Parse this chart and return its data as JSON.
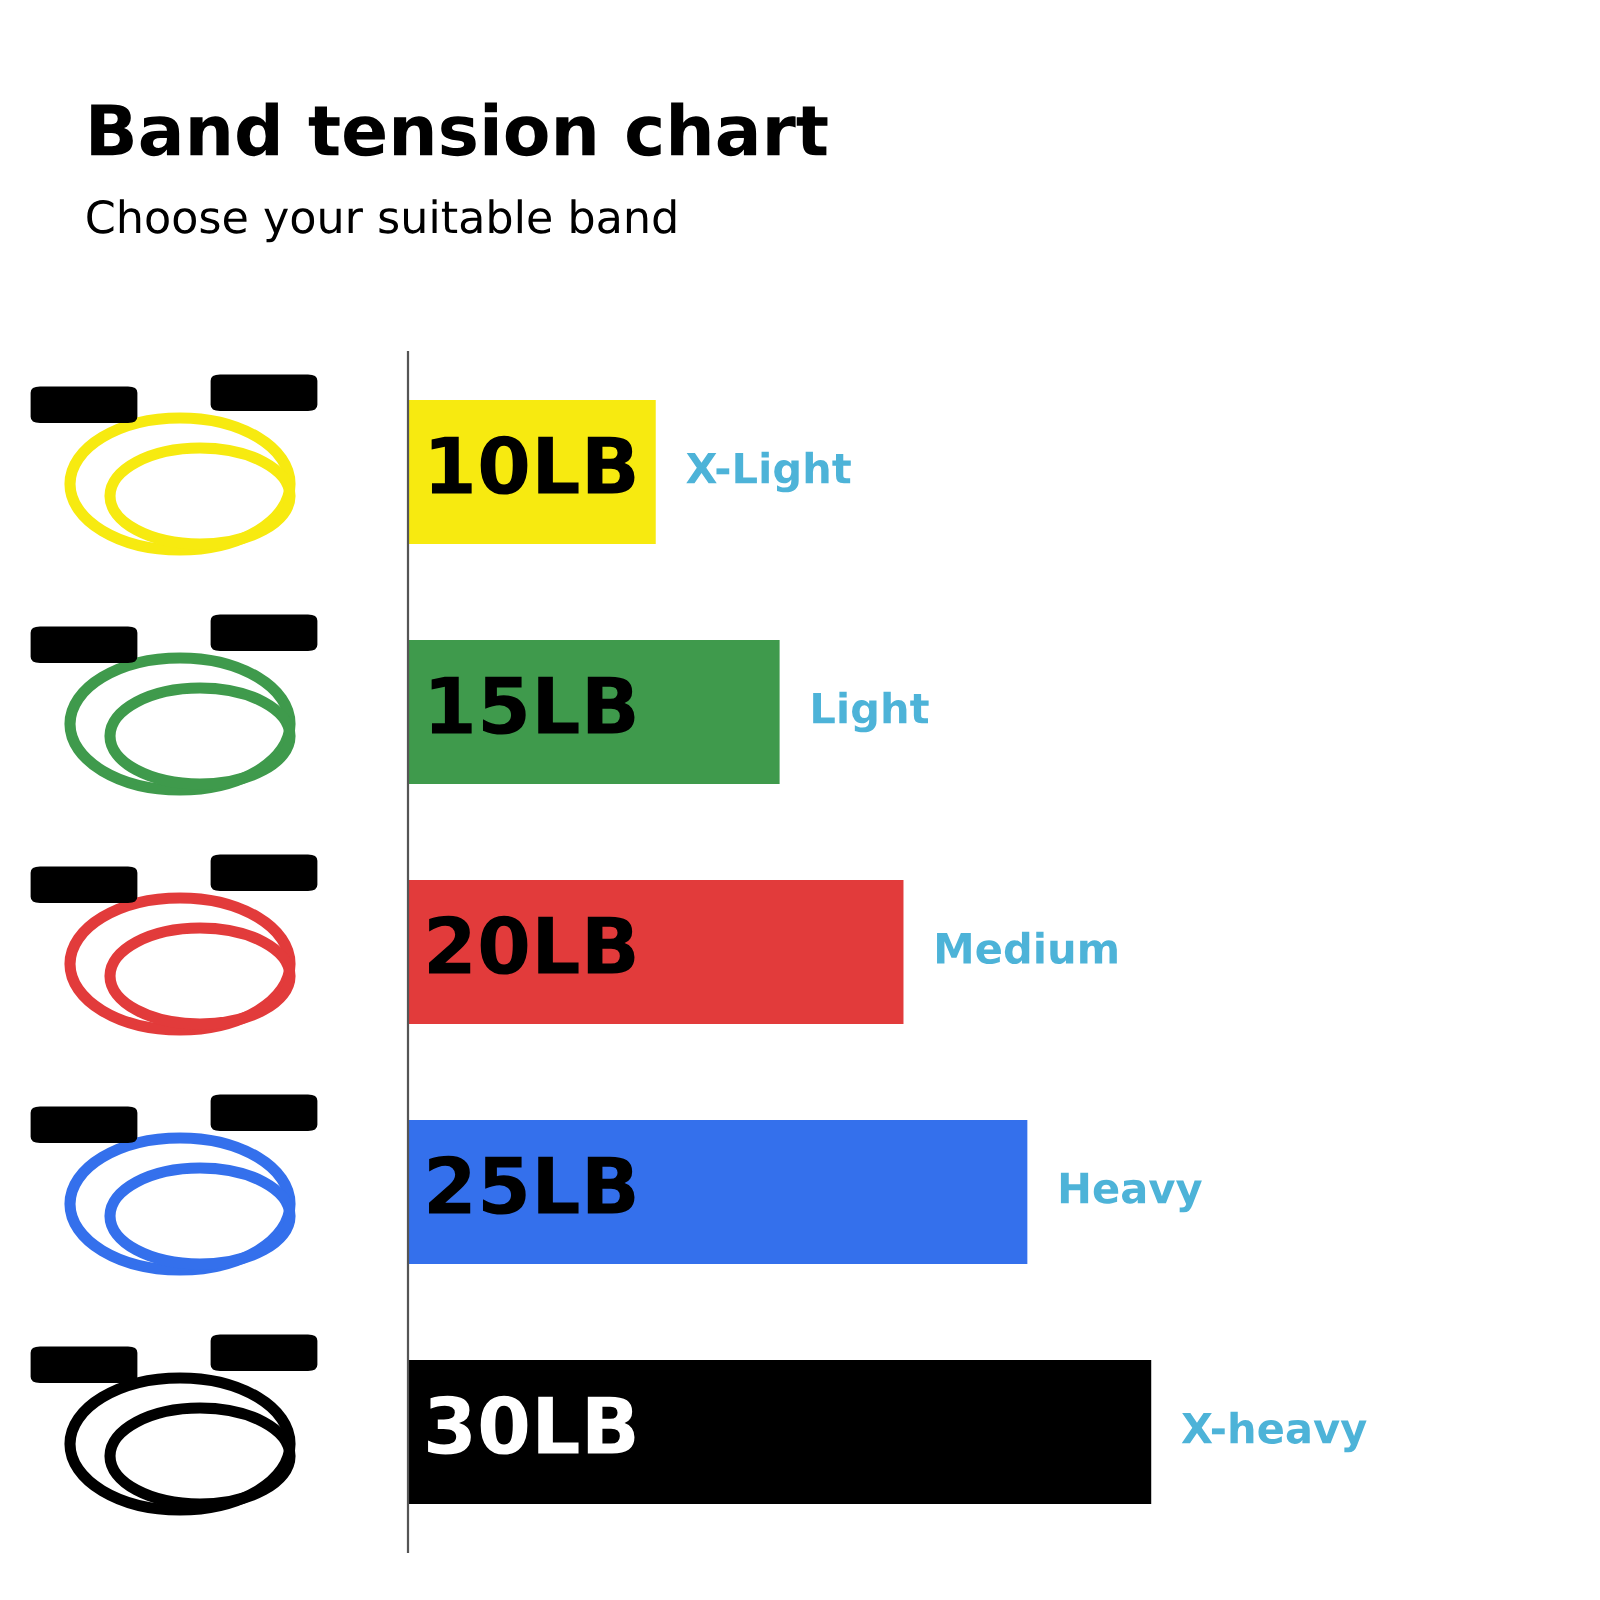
{
  "chart_data": {
    "type": "bar",
    "orientation": "horizontal",
    "title": "Band tension chart",
    "subtitle": "Choose your suitable band",
    "categories": [
      "X-Light",
      "Light",
      "Medium",
      "Heavy",
      "X-heavy"
    ],
    "values": [
      10,
      15,
      20,
      25,
      30
    ],
    "colors": [
      "#f7ea10",
      "#3f9a4c",
      "#e23b3b",
      "#3470ec",
      "#000000"
    ],
    "value_labels": [
      "10LB",
      "15LB",
      "20LB",
      "25LB",
      "30LB"
    ]
  }
}
